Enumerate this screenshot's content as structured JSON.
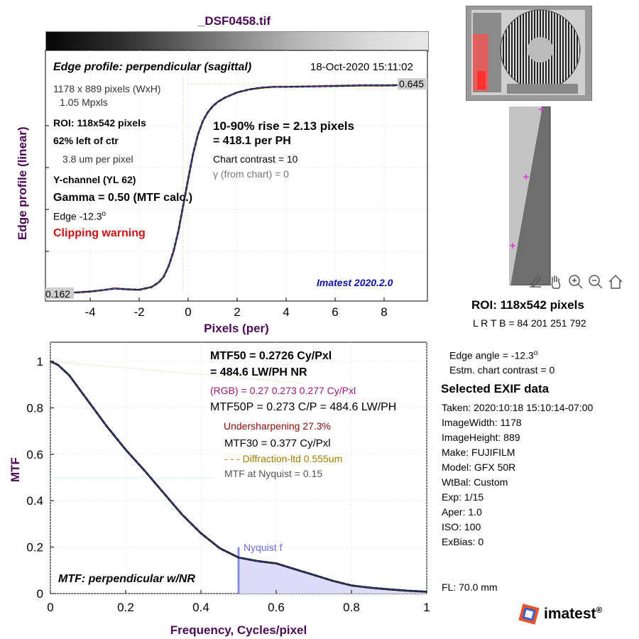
{
  "title": "_DSF0458.tif",
  "edge_plot": {
    "heading": "Edge profile: perpendicular (sagittal)",
    "timestamp": "18-Oct-2020 15:11:02",
    "ylabel": "Edge profile (linear)",
    "xlabel": "Pixels (per)",
    "xticks": [
      "-4",
      "-2",
      "0",
      "2",
      "4",
      "6",
      "8"
    ],
    "max_label": "0.645",
    "min_label": "0.162",
    "info": {
      "dims": "1178 x 889 pixels (WxH)",
      "mpxls": "1.05 Mpxls",
      "roi": "ROI:  118x542 pixels",
      "loc": "62% left of ctr",
      "um": "3.8 um per pixel",
      "channel": "Y-channel  (YL 62)",
      "gamma": "Gamma = 0.50 (MTF calc.)",
      "edge": "Edge  -12.3",
      "edge_deg": "o",
      "clipping": "Clipping warning"
    },
    "rise": "10-90% rise = 2.13 pixels",
    "per_ph": "=  418.1 per PH",
    "contrast": "Chart contrast = 10",
    "gamma_chart": "γ (from chart) =     0",
    "version": "Imatest 2020.2.0"
  },
  "mtf_plot": {
    "ylabel": "MTF",
    "xlabel": "Frequency, Cycles/pixel",
    "xticks": [
      "0",
      "0.2",
      "0.4",
      "0.6",
      "0.8",
      "1"
    ],
    "yticks": [
      "0",
      "0.2",
      "0.4",
      "0.6",
      "0.8",
      "1"
    ],
    "mtf50": "MTF50 = 0.2726 Cy/Pxl",
    "mtf50_lw": "= 484.6 LW/PH  NR",
    "rgb": "(RGB) = 0.27  0.273  0.277 Cy/Pxl",
    "mtf50p": "MTF50P = 0.273 C/P = 484.6 LW/PH",
    "undersharp": "Undersharpening 27.3%",
    "mtf30": "MTF30 = 0.377 Cy/Pxl",
    "diffraction": "- - - Diffraction-ltd  0.555um",
    "nyquist_mtf": "MTF at Nyquist = 0.15",
    "nyquist_label": "Nyquist f",
    "plot_label": "MTF: perpendicular w/NR"
  },
  "chart_data": [
    {
      "type": "line",
      "title": "Edge profile: perpendicular (sagittal)",
      "xlabel": "Pixels (per)",
      "ylabel": "Edge profile (linear)",
      "xlim": [
        -5.5,
        9.3
      ],
      "ylim": [
        0.162,
        0.645
      ],
      "grid": true,
      "series": [
        {
          "x": [
            -5.5,
            -5,
            -4.5,
            -4,
            -3.5,
            -3,
            -2.5,
            -2,
            -1.5,
            -1.2,
            -1,
            -0.8,
            -0.6,
            -0.4,
            -0.2,
            0,
            0.2,
            0.4,
            0.6,
            0.8,
            1,
            1.2,
            1.5,
            2,
            2.5,
            3,
            3.5,
            4,
            5,
            6,
            7,
            8,
            9
          ],
          "y": [
            0.162,
            0.163,
            0.164,
            0.166,
            0.169,
            0.173,
            0.171,
            0.17,
            0.176,
            0.187,
            0.2,
            0.224,
            0.258,
            0.305,
            0.365,
            0.425,
            0.483,
            0.528,
            0.559,
            0.579,
            0.593,
            0.603,
            0.613,
            0.625,
            0.632,
            0.636,
            0.638,
            0.638,
            0.639,
            0.64,
            0.641,
            0.641,
            0.642
          ]
        }
      ]
    },
    {
      "type": "line",
      "xlabel": "Frequency, Cycles/pixel",
      "ylabel": "MTF",
      "xlim": [
        0,
        1
      ],
      "ylim": [
        0,
        1.07
      ],
      "grid": true,
      "series": [
        {
          "x": [
            0,
            0.02,
            0.05,
            0.1,
            0.15,
            0.2,
            0.25,
            0.3,
            0.35,
            0.4,
            0.45,
            0.5,
            0.55,
            0.6,
            0.65,
            0.7,
            0.75,
            0.8,
            0.85,
            0.9,
            0.95,
            1.0
          ],
          "y": [
            1.0,
            0.985,
            0.94,
            0.83,
            0.72,
            0.62,
            0.53,
            0.435,
            0.34,
            0.26,
            0.195,
            0.155,
            0.14,
            0.13,
            0.105,
            0.08,
            0.055,
            0.035,
            0.025,
            0.018,
            0.012,
            0.008
          ]
        }
      ],
      "nyquist": {
        "x": 0.5,
        "mtf": 0.15
      }
    }
  ],
  "thumbnail": {
    "roi_label": "ROI:  118x542 pixels",
    "coords": "L R  T B = 84 201  251 792"
  },
  "right_info": {
    "edge_angle": "Edge angle = -12.3",
    "edge_angle_deg": "o",
    "est_contrast": "Estm. chart contrast = 0",
    "exif_title": "Selected EXIF data",
    "exif": [
      "Taken: 2020:10:18 15:10:14-07:00",
      "ImageWidth:  1178",
      "ImageHeight:  889",
      "Make:  FUJIFILM",
      "Model:  GFX 50R",
      "WtBal:  Custom",
      "Exp:    1/15",
      "Aper:    1.0",
      "ISO:    100",
      "ExBias:  0"
    ],
    "fl": "FL:    70.0 mm"
  },
  "brand": "imatest",
  "brand_mark": "®",
  "colors": {
    "title": "#4b0a55",
    "clipping": "#cc1111",
    "version": "#0b0fa8",
    "rgb": "#a0186f",
    "undersharp": "#8b0a0a",
    "diffraction": "#a07d00",
    "nyquist": "#8c8ce6"
  }
}
